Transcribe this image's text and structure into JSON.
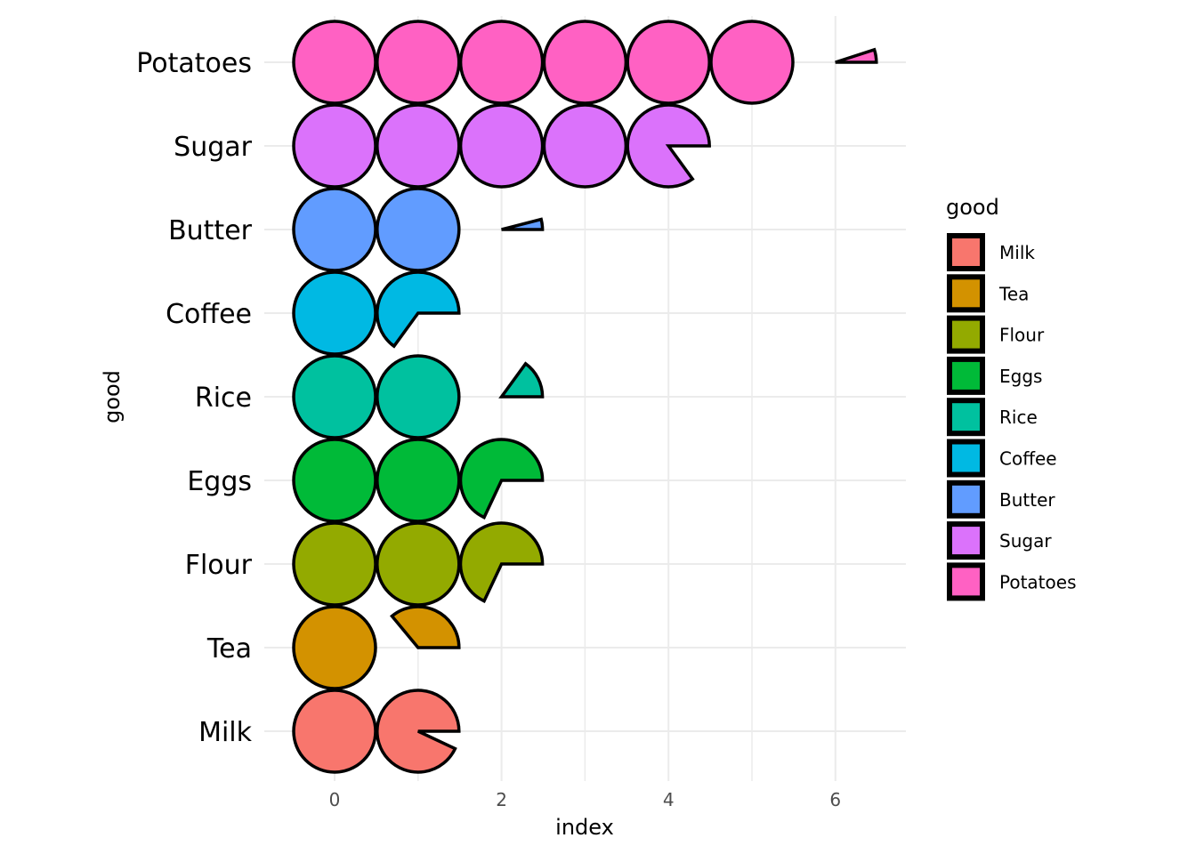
{
  "chart_data": {
    "type": "pie-glyph bar",
    "xlabel": "index",
    "ylabel": "good",
    "xlim": [
      -0.5,
      6.8
    ],
    "x_ticks": [
      "0",
      "2",
      "4",
      "6"
    ],
    "grid": true,
    "legend": {
      "title": "good",
      "placement": "right"
    },
    "categories": [
      "Milk",
      "Tea",
      "Flour",
      "Eggs",
      "Rice",
      "Coffee",
      "Butter",
      "Sugar",
      "Potatoes"
    ],
    "values": [
      1.93,
      1.36,
      2.68,
      2.68,
      2.15,
      1.65,
      2.04,
      4.85,
      6.05
    ],
    "colors": [
      "#F8766D",
      "#D39200",
      "#93AA00",
      "#00BA38",
      "#00C19F",
      "#00B9E3",
      "#619CFF",
      "#DB72FB",
      "#FF61C3"
    ]
  }
}
